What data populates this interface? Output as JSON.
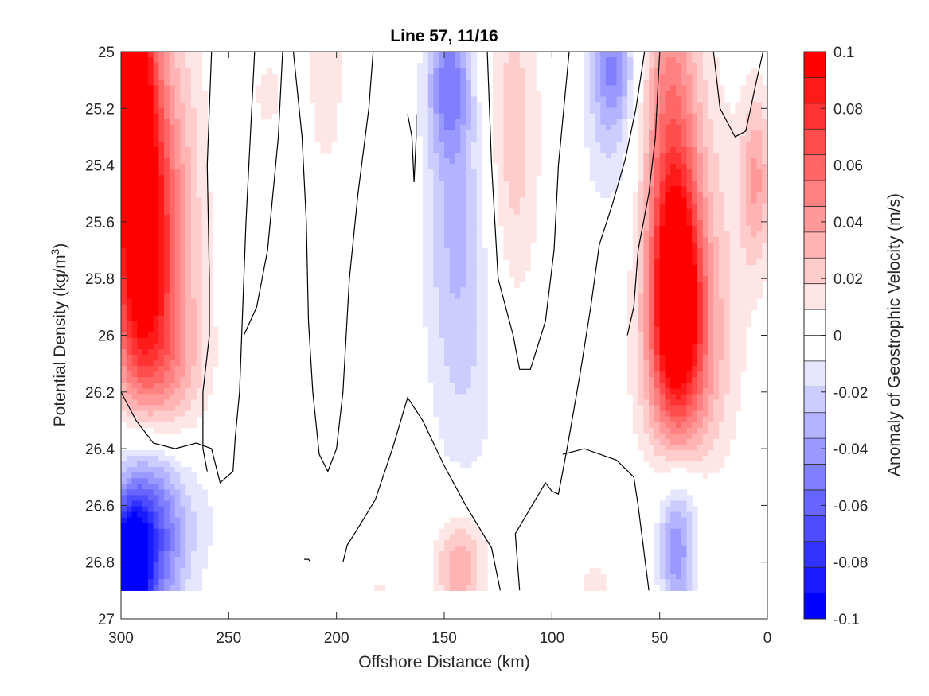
{
  "chart_data": {
    "type": "heatmap",
    "subtype": "filled-contour",
    "title": "Line 57, 11/16",
    "xlabel": "Offshore Distance (km)",
    "ylabel_main": "Potential Density (kg/m",
    "ylabel_sup": "3",
    "ylabel_end": ")",
    "colorbar_label": "Anomaly of Geostrophic Velocity (m/s)",
    "xlim": [
      300,
      0
    ],
    "x_reversed": true,
    "ylim": [
      25,
      27
    ],
    "y_reversed": true,
    "x_ticks": [
      300,
      250,
      200,
      150,
      100,
      50,
      0
    ],
    "x_tick_labels": [
      "300",
      "250",
      "200",
      "150",
      "100",
      "50",
      "0"
    ],
    "y_ticks": [
      25,
      25.2,
      25.4,
      25.6,
      25.8,
      26,
      26.2,
      26.4,
      26.6,
      26.8,
      27
    ],
    "y_tick_labels": [
      "25",
      "25.2",
      "25.4",
      "25.6",
      "25.8",
      "26",
      "26.2",
      "26.4",
      "26.6",
      "26.8",
      "27"
    ],
    "colorbar": {
      "min": -0.1,
      "max": 0.1,
      "ticks": [
        0.1,
        0.08,
        0.06,
        0.04,
        0.02,
        0,
        -0.02,
        -0.04,
        -0.06,
        -0.08,
        -0.1
      ],
      "tick_labels": [
        "0.1",
        "0.08",
        "0.06",
        "0.04",
        "0.02",
        "0",
        "-0.02",
        "-0.04",
        "-0.06",
        "-0.08",
        "-0.1"
      ],
      "levels": [
        -0.1,
        -0.09,
        -0.08,
        -0.07,
        -0.06,
        -0.05,
        -0.04,
        -0.03,
        -0.02,
        -0.01,
        0.01,
        0.02,
        0.03,
        0.04,
        0.05,
        0.06,
        0.07,
        0.08,
        0.09,
        0.1
      ],
      "colors_top_to_bottom": [
        "#ff0000",
        "#ff1a1a",
        "#ff3333",
        "#ff4d4d",
        "#ff6666",
        "#ff8080",
        "#ff9999",
        "#ffb3b3",
        "#ffcccc",
        "#ffe6e6",
        "#ffffff",
        "#ffffff",
        "#e6e6ff",
        "#ccccff",
        "#b3b3ff",
        "#9999ff",
        "#8080ff",
        "#6666ff",
        "#4d4dff",
        "#3333ff",
        "#1a1aff",
        "#0000ff"
      ]
    },
    "data_extent": {
      "x": [
        300,
        0
      ],
      "y": [
        25,
        26.9
      ]
    },
    "features": [
      {
        "x": 295,
        "y": 25.05,
        "value": 0.1,
        "sx": 7,
        "sy": 0.35
      },
      {
        "x": 292,
        "y": 25.7,
        "value": 0.07,
        "sx": 9,
        "sy": 0.35
      },
      {
        "x": 282,
        "y": 25.6,
        "value": 0.05,
        "sx": 13,
        "sy": 0.55
      },
      {
        "x": 280,
        "y": 26.1,
        "value": 0.02,
        "sx": 15,
        "sy": 0.18
      },
      {
        "x": 205,
        "y": 25.0,
        "value": 0.015,
        "sx": 8,
        "sy": 0.4
      },
      {
        "x": 232,
        "y": 25.15,
        "value": 0.013,
        "sx": 6,
        "sy": 0.12
      },
      {
        "x": 148,
        "y": 25.1,
        "value": -0.04,
        "sx": 7,
        "sy": 0.18
      },
      {
        "x": 145,
        "y": 25.5,
        "value": -0.025,
        "sx": 10,
        "sy": 0.4
      },
      {
        "x": 140,
        "y": 26.1,
        "value": -0.015,
        "sx": 13,
        "sy": 0.4
      },
      {
        "x": 118,
        "y": 25.3,
        "value": 0.025,
        "sx": 9,
        "sy": 0.45
      },
      {
        "x": 72,
        "y": 25.05,
        "value": -0.045,
        "sx": 7,
        "sy": 0.15
      },
      {
        "x": 74,
        "y": 25.35,
        "value": -0.015,
        "sx": 9,
        "sy": 0.2
      },
      {
        "x": 42,
        "y": 25.85,
        "value": 0.075,
        "sx": 7,
        "sy": 0.25
      },
      {
        "x": 45,
        "y": 25.4,
        "value": 0.055,
        "sx": 9,
        "sy": 0.5
      },
      {
        "x": 40,
        "y": 26.1,
        "value": 0.04,
        "sx": 13,
        "sy": 0.28
      },
      {
        "x": 30,
        "y": 25.7,
        "value": 0.02,
        "sx": 15,
        "sy": 0.5
      },
      {
        "x": 5,
        "y": 25.45,
        "value": 0.035,
        "sx": 5,
        "sy": 0.22
      },
      {
        "x": 296,
        "y": 26.82,
        "value": -0.09,
        "sx": 6,
        "sy": 0.15
      },
      {
        "x": 288,
        "y": 26.72,
        "value": -0.06,
        "sx": 11,
        "sy": 0.28
      },
      {
        "x": 278,
        "y": 26.65,
        "value": -0.02,
        "sx": 17,
        "sy": 0.2
      },
      {
        "x": 42,
        "y": 26.78,
        "value": -0.04,
        "sx": 6,
        "sy": 0.18
      },
      {
        "x": 40,
        "y": 26.6,
        "value": -0.015,
        "sx": 10,
        "sy": 0.15
      },
      {
        "x": 143,
        "y": 26.85,
        "value": 0.03,
        "sx": 8,
        "sy": 0.12
      },
      {
        "x": 142,
        "y": 26.72,
        "value": 0.013,
        "sx": 10,
        "sy": 0.12
      },
      {
        "x": 80,
        "y": 26.88,
        "value": 0.015,
        "sx": 6,
        "sy": 0.06
      },
      {
        "x": 180,
        "y": 26.9,
        "value": 0.012,
        "sx": 6,
        "sy": 0.04
      }
    ],
    "zero_contours": [
      [
        [
          258,
          25
        ],
        [
          260,
          25.4
        ],
        [
          259,
          25.8
        ],
        [
          259,
          26.0
        ],
        [
          262,
          26.2
        ],
        [
          262,
          26.4
        ],
        [
          260,
          26.48
        ]
      ],
      [
        [
          300,
          26.2
        ],
        [
          293,
          26.3
        ],
        [
          285,
          26.38
        ],
        [
          275,
          26.4
        ],
        [
          265,
          26.38
        ],
        [
          258,
          26.4
        ],
        [
          254,
          26.52
        ],
        [
          248,
          26.48
        ],
        [
          247,
          26.36
        ],
        [
          245,
          26.2
        ],
        [
          244,
          26.0
        ],
        [
          242,
          25.6
        ],
        [
          240,
          25.3
        ],
        [
          238,
          25.0
        ]
      ],
      [
        [
          225,
          25.0
        ],
        [
          227,
          25.3
        ],
        [
          232,
          25.7
        ],
        [
          237,
          25.9
        ],
        [
          243,
          26.0
        ]
      ],
      [
        [
          220,
          25.0
        ],
        [
          216,
          25.3
        ],
        [
          214,
          25.6
        ],
        [
          213,
          25.95
        ],
        [
          211,
          26.2
        ],
        [
          208,
          26.42
        ],
        [
          204,
          26.48
        ],
        [
          200,
          26.4
        ],
        [
          197,
          26.2
        ],
        [
          194,
          25.8
        ],
        [
          190,
          25.5
        ],
        [
          185,
          25.2
        ],
        [
          183,
          25.0
        ]
      ],
      [
        [
          167,
          25.22
        ],
        [
          165,
          25.3
        ],
        [
          164,
          25.46
        ],
        [
          163,
          25.3
        ],
        [
          163,
          25.22
        ]
      ],
      [
        [
          197,
          26.8
        ],
        [
          195,
          26.74
        ],
        [
          190,
          26.68
        ],
        [
          182,
          26.58
        ],
        [
          174,
          26.4
        ],
        [
          167,
          26.22
        ],
        [
          160,
          26.3
        ],
        [
          150,
          26.46
        ],
        [
          140,
          26.6
        ],
        [
          128,
          26.75
        ],
        [
          124,
          26.9
        ]
      ],
      [
        [
          215,
          26.79
        ],
        [
          213,
          26.79
        ],
        [
          212,
          26.8
        ]
      ],
      [
        [
          115,
          26.9
        ],
        [
          117,
          26.7
        ],
        [
          103,
          26.52
        ],
        [
          100,
          26.55
        ],
        [
          97,
          26.56
        ],
        [
          93,
          26.4
        ],
        [
          87,
          26.14
        ],
        [
          82,
          25.9
        ],
        [
          78,
          25.68
        ],
        [
          72,
          25.54
        ],
        [
          66,
          25.38
        ],
        [
          61,
          25.2
        ],
        [
          57,
          25.0
        ]
      ],
      [
        [
          130,
          25.0
        ],
        [
          128,
          25.4
        ],
        [
          125,
          25.8
        ],
        [
          118,
          26.0
        ],
        [
          115,
          26.12
        ],
        [
          110,
          26.12
        ],
        [
          103,
          25.95
        ],
        [
          99,
          25.7
        ],
        [
          97,
          25.4
        ],
        [
          92,
          25.0
        ]
      ],
      [
        [
          55,
          26.9
        ],
        [
          60,
          26.6
        ],
        [
          62,
          26.5
        ],
        [
          70,
          26.44
        ],
        [
          85,
          26.4
        ],
        [
          95,
          26.42
        ]
      ],
      [
        [
          50,
          25.0
        ],
        [
          52,
          25.3
        ],
        [
          55,
          25.5
        ],
        [
          60,
          25.7
        ],
        [
          62,
          25.9
        ],
        [
          65,
          26.0
        ]
      ],
      [
        [
          25,
          25.0
        ],
        [
          22,
          25.2
        ],
        [
          15,
          25.3
        ],
        [
          10,
          25.28
        ],
        [
          5,
          25.1
        ],
        [
          2,
          25.0
        ]
      ]
    ]
  }
}
